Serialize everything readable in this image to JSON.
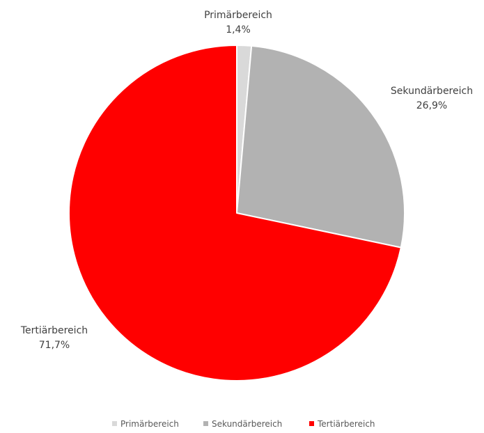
{
  "chart_data": {
    "type": "pie",
    "categories": [
      "Primärbereich",
      "Sekundärbereich",
      "Tertiärbereich"
    ],
    "values": [
      1.4,
      26.9,
      71.7
    ],
    "value_labels": [
      "1,4%",
      "26,9%",
      "71,7%"
    ],
    "colors": [
      "#d9d9d9",
      "#b2b2b2",
      "#ff0000"
    ],
    "legend": {
      "placement": "bottom",
      "entries": [
        "Primärbereich",
        "Sekundärbereich",
        "Tertiärbereich"
      ]
    }
  }
}
